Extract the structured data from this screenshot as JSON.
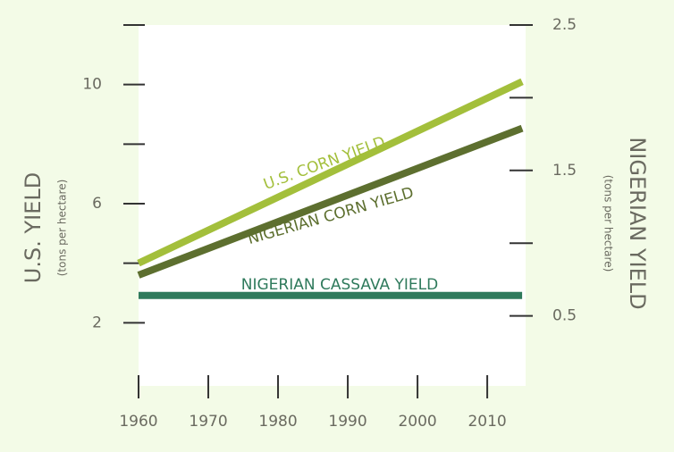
{
  "chart_data": {
    "type": "line",
    "x": [
      1960,
      2015
    ],
    "xlim": [
      1960,
      2015.5
    ],
    "xticks": [
      1960,
      1970,
      1980,
      1990,
      2000,
      2010
    ],
    "ylim": [
      0,
      12
    ],
    "yticks": [
      2,
      6,
      10
    ],
    "yminor_ticks": [
      4,
      8,
      12
    ],
    "y2lim": [
      0,
      2.5
    ],
    "y2ticks": [
      0.5,
      1.5,
      2.5
    ],
    "y2minor_ticks": [
      1.0,
      2.0
    ],
    "ylabel": "U.S. YIELD",
    "ylabel_sub": "(tons per hectare)",
    "y2label": "NIGERIAN YIELD",
    "y2label_sub": "(tons per hectare)",
    "series": [
      {
        "name": "U.S. CORN YIELD",
        "color": "#a3bf3b",
        "values": [
          4.0,
          10.1
        ]
      },
      {
        "name": "NIGERIAN CORN YIELD",
        "color": "#5d6f2f",
        "values": [
          0.78,
          1.79
        ],
        "axis": "y2"
      },
      {
        "name": "NIGERIAN CASSAVA YIELD",
        "color": "#2f7a5c",
        "values": [
          0.64,
          0.64
        ],
        "axis": "y2"
      }
    ]
  }
}
